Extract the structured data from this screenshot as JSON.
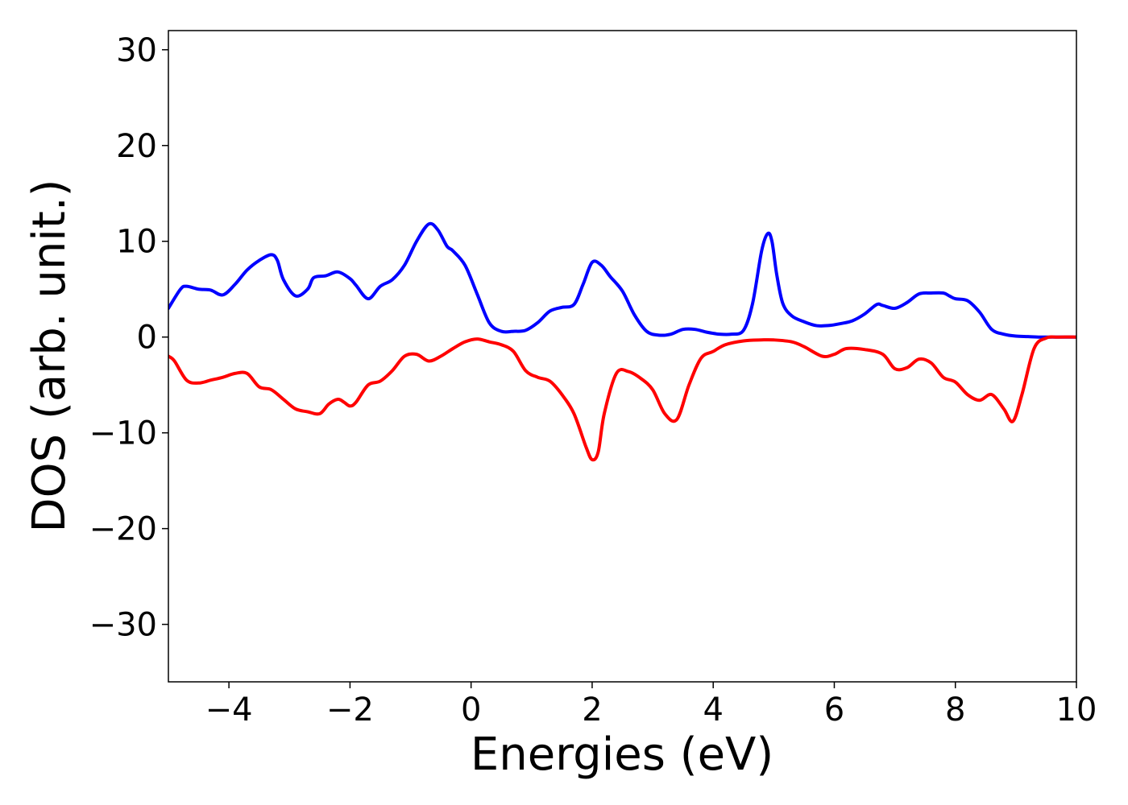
{
  "chart_data": {
    "type": "line",
    "title": "",
    "xlabel": "Energies (eV)",
    "ylabel": "DOS (arb. unit.)",
    "xlim": [
      -5,
      10
    ],
    "ylim": [
      -36,
      32
    ],
    "xticks": [
      -4,
      -2,
      0,
      2,
      4,
      6,
      8,
      10
    ],
    "xtick_labels": [
      "−4",
      "−2",
      "0",
      "2",
      "4",
      "6",
      "8",
      "10"
    ],
    "yticks": [
      -30,
      -20,
      -10,
      0,
      10,
      20,
      30
    ],
    "ytick_labels": [
      "−30",
      "−20",
      "−10",
      "0",
      "10",
      "20",
      "30"
    ],
    "grid": false,
    "series": [
      {
        "color": "#0000ff",
        "x": [
          -5.0,
          -4.8,
          -4.7,
          -4.5,
          -4.3,
          -4.1,
          -3.9,
          -3.7,
          -3.5,
          -3.3,
          -3.2,
          -3.1,
          -2.9,
          -2.7,
          -2.6,
          -2.4,
          -2.2,
          -2.0,
          -1.9,
          -1.7,
          -1.5,
          -1.3,
          -1.1,
          -0.9,
          -0.7,
          -0.55,
          -0.4,
          -0.3,
          -0.1,
          0.1,
          0.3,
          0.5,
          0.7,
          0.9,
          1.1,
          1.3,
          1.5,
          1.7,
          1.85,
          2.0,
          2.15,
          2.3,
          2.5,
          2.7,
          2.9,
          3.1,
          3.3,
          3.5,
          3.7,
          3.9,
          4.1,
          4.3,
          4.5,
          4.65,
          4.8,
          4.9,
          4.97,
          5.05,
          5.15,
          5.3,
          5.5,
          5.7,
          5.9,
          6.1,
          6.3,
          6.5,
          6.7,
          6.8,
          7.0,
          7.2,
          7.4,
          7.6,
          7.8,
          7.9,
          8.0,
          8.2,
          8.4,
          8.6,
          8.8,
          9.0,
          9.2,
          9.4,
          9.6,
          9.8,
          10.0
        ],
        "y": [
          3.0,
          5.0,
          5.3,
          5.0,
          4.9,
          4.4,
          5.5,
          7.0,
          8.0,
          8.6,
          8.0,
          6.0,
          4.3,
          5.0,
          6.2,
          6.4,
          6.8,
          6.1,
          5.4,
          4.0,
          5.3,
          6.0,
          7.5,
          10.0,
          11.8,
          11.2,
          9.5,
          9.0,
          7.5,
          4.5,
          1.5,
          0.6,
          0.6,
          0.7,
          1.5,
          2.7,
          3.1,
          3.4,
          5.5,
          7.8,
          7.5,
          6.3,
          4.8,
          2.3,
          0.6,
          0.2,
          0.3,
          0.8,
          0.8,
          0.5,
          0.3,
          0.3,
          0.7,
          3.5,
          9.0,
          10.8,
          10.0,
          6.5,
          3.5,
          2.2,
          1.6,
          1.2,
          1.2,
          1.4,
          1.7,
          2.4,
          3.4,
          3.3,
          3.0,
          3.6,
          4.5,
          4.6,
          4.6,
          4.3,
          4.0,
          3.8,
          2.6,
          0.8,
          0.3,
          0.1,
          0.05,
          0.0,
          0.0,
          0.0,
          0.0
        ]
      },
      {
        "color": "#ff0000",
        "x": [
          -5.0,
          -4.9,
          -4.7,
          -4.5,
          -4.3,
          -4.1,
          -3.9,
          -3.7,
          -3.5,
          -3.3,
          -3.1,
          -2.9,
          -2.7,
          -2.5,
          -2.35,
          -2.2,
          -2.1,
          -2.0,
          -1.9,
          -1.7,
          -1.5,
          -1.3,
          -1.1,
          -0.9,
          -0.7,
          -0.5,
          -0.3,
          -0.1,
          0.1,
          0.3,
          0.5,
          0.7,
          0.9,
          1.1,
          1.3,
          1.5,
          1.7,
          1.9,
          2.0,
          2.1,
          2.2,
          2.4,
          2.6,
          2.8,
          3.0,
          3.2,
          3.4,
          3.6,
          3.8,
          4.0,
          4.2,
          4.5,
          4.8,
          5.0,
          5.3,
          5.5,
          5.8,
          6.0,
          6.2,
          6.5,
          6.8,
          7.0,
          7.2,
          7.4,
          7.6,
          7.8,
          8.0,
          8.2,
          8.4,
          8.6,
          8.8,
          8.95,
          9.1,
          9.3,
          9.5,
          9.7,
          10.0
        ],
        "y": [
          -2.0,
          -2.5,
          -4.5,
          -4.8,
          -4.5,
          -4.2,
          -3.8,
          -3.8,
          -5.2,
          -5.5,
          -6.5,
          -7.5,
          -7.8,
          -8.0,
          -7.0,
          -6.5,
          -6.8,
          -7.2,
          -6.8,
          -5.0,
          -4.6,
          -3.5,
          -2.0,
          -1.8,
          -2.5,
          -2.0,
          -1.2,
          -0.5,
          -0.2,
          -0.5,
          -0.8,
          -1.5,
          -3.5,
          -4.2,
          -4.6,
          -6.0,
          -8.0,
          -11.5,
          -12.8,
          -12.0,
          -8.0,
          -3.8,
          -3.6,
          -4.3,
          -5.5,
          -8.0,
          -8.6,
          -5.0,
          -2.2,
          -1.5,
          -0.8,
          -0.4,
          -0.3,
          -0.3,
          -0.5,
          -1.0,
          -2.0,
          -1.8,
          -1.2,
          -1.3,
          -1.8,
          -3.3,
          -3.2,
          -2.3,
          -2.7,
          -4.2,
          -4.7,
          -6.0,
          -6.6,
          -6.0,
          -7.5,
          -8.8,
          -6.0,
          -1.2,
          -0.1,
          0.0,
          0.0
        ]
      }
    ]
  }
}
